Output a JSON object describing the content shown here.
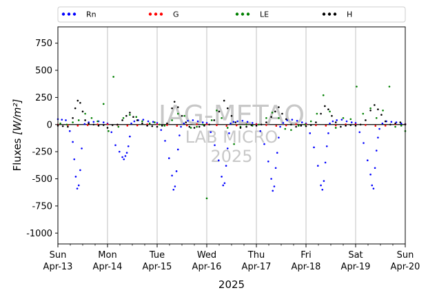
{
  "watermark": {
    "line1": "IAG-METAO",
    "line2": "LAB MICRO",
    "line3": "2025"
  },
  "chart_data": {
    "type": "scatter",
    "title": "",
    "xlabel": "2025",
    "ylabel": "Fluxes [W/m²]",
    "ylim": [
      -1100,
      900
    ],
    "yticks": [
      750,
      500,
      250,
      0,
      -250,
      -500,
      -750,
      -1000
    ],
    "xlim": [
      0,
      7
    ],
    "xticks": [
      {
        "x": 0,
        "day": "Sun",
        "date": "Apr-13"
      },
      {
        "x": 1,
        "day": "Mon",
        "date": "Apr-14"
      },
      {
        "x": 2,
        "day": "Tue",
        "date": "Apr-15"
      },
      {
        "x": 3,
        "day": "Wed",
        "date": "Apr-16"
      },
      {
        "x": 4,
        "day": "Thu",
        "date": "Apr-17"
      },
      {
        "x": 5,
        "day": "Fri",
        "date": "Apr-18"
      },
      {
        "x": 6,
        "day": "Sat",
        "date": "Apr-19"
      },
      {
        "x": 7,
        "day": "Sun",
        "date": "Apr-20"
      }
    ],
    "grid": "vertical",
    "legend_position": "top",
    "series": [
      {
        "name": "Rn",
        "color": "#0000ff",
        "x": [
          0.0,
          0.08,
          0.16,
          0.24,
          0.3,
          0.33,
          0.36,
          0.39,
          0.42,
          0.45,
          0.48,
          0.54,
          0.62,
          0.72,
          0.82,
          0.92,
          1.0,
          1.08,
          1.16,
          1.24,
          1.3,
          1.33,
          1.36,
          1.39,
          1.42,
          1.45,
          1.48,
          1.54,
          1.62,
          1.72,
          1.82,
          1.92,
          2.0,
          2.08,
          2.16,
          2.24,
          2.3,
          2.33,
          2.36,
          2.39,
          2.42,
          2.45,
          2.48,
          2.54,
          2.62,
          2.72,
          2.82,
          2.92,
          3.0,
          3.08,
          3.16,
          3.24,
          3.3,
          3.33,
          3.36,
          3.39,
          3.42,
          3.45,
          3.48,
          3.54,
          3.62,
          3.72,
          3.82,
          3.92,
          4.0,
          4.08,
          4.16,
          4.24,
          4.3,
          4.33,
          4.36,
          4.39,
          4.42,
          4.45,
          4.48,
          4.54,
          4.62,
          4.72,
          4.82,
          4.92,
          5.0,
          5.08,
          5.16,
          5.24,
          5.3,
          5.33,
          5.36,
          5.39,
          5.42,
          5.45,
          5.48,
          5.54,
          5.62,
          5.72,
          5.82,
          5.92,
          6.0,
          6.08,
          6.16,
          6.24,
          6.3,
          6.33,
          6.36,
          6.39,
          6.42,
          6.45,
          6.48,
          6.54,
          6.62,
          6.72,
          6.82,
          6.92,
          7.0
        ],
        "y": [
          50,
          45,
          40,
          -60,
          -160,
          -320,
          -480,
          -590,
          -560,
          -420,
          -220,
          5,
          20,
          25,
          30,
          20,
          10,
          -70,
          -190,
          -250,
          -300,
          -320,
          -290,
          -260,
          -200,
          -110,
          10,
          30,
          40,
          45,
          30,
          25,
          15,
          -50,
          -150,
          -310,
          -470,
          -600,
          -570,
          -430,
          -230,
          -100,
          -20,
          10,
          35,
          40,
          30,
          20,
          15,
          -70,
          -190,
          -330,
          -480,
          -560,
          -540,
          -380,
          -220,
          -80,
          10,
          25,
          30,
          35,
          25,
          15,
          5,
          -60,
          -180,
          -340,
          -500,
          -610,
          -570,
          -400,
          -260,
          -120,
          -20,
          15,
          40,
          45,
          35,
          20,
          10,
          -80,
          -210,
          -380,
          -560,
          -600,
          -520,
          -350,
          -200,
          -80,
          10,
          30,
          40,
          45,
          30,
          20,
          15,
          -70,
          -170,
          -330,
          -460,
          -560,
          -590,
          -400,
          -240,
          -120,
          -40,
          10,
          30,
          25,
          20,
          10,
          5
        ]
      },
      {
        "name": "G",
        "color": "#ff0000",
        "x": [
          0.0,
          0.2,
          0.4,
          0.6,
          0.8,
          1.0,
          1.2,
          1.4,
          1.6,
          1.8,
          2.0,
          2.2,
          2.4,
          2.6,
          2.8,
          3.0,
          3.2,
          3.4,
          3.6,
          3.8,
          4.0,
          4.2,
          4.4,
          4.6,
          4.8,
          5.0,
          5.2,
          5.4,
          5.6,
          5.8,
          6.0,
          6.2,
          6.4,
          6.6,
          6.8,
          7.0
        ],
        "y": [
          0,
          -5,
          -10,
          -5,
          2,
          3,
          -3,
          -10,
          -8,
          2,
          3,
          -5,
          -12,
          -8,
          2,
          3,
          -6,
          -12,
          -8,
          2,
          3,
          -5,
          -12,
          -8,
          2,
          3,
          -6,
          -10,
          -8,
          2,
          3,
          -5,
          -12,
          -10,
          2,
          3
        ]
      },
      {
        "name": "LE",
        "color": "#008000",
        "x": [
          0.05,
          0.18,
          0.3,
          0.42,
          0.55,
          0.68,
          0.8,
          0.92,
          1.02,
          1.12,
          1.22,
          1.32,
          1.45,
          1.58,
          1.7,
          1.85,
          1.95,
          2.05,
          2.15,
          2.3,
          2.42,
          2.55,
          2.68,
          2.8,
          2.92,
          3.0,
          3.1,
          3.2,
          3.3,
          3.42,
          3.55,
          3.68,
          3.8,
          3.92,
          4.05,
          4.2,
          4.32,
          4.45,
          4.58,
          4.7,
          4.85,
          4.98,
          5.1,
          5.22,
          5.35,
          5.48,
          5.6,
          5.75,
          5.9,
          6.02,
          6.15,
          6.3,
          6.42,
          6.55,
          6.68,
          6.8,
          6.92,
          7.0
        ],
        "y": [
          10,
          0,
          20,
          40,
          100,
          60,
          30,
          190,
          -60,
          440,
          -20,
          60,
          90,
          70,
          30,
          10,
          20,
          0,
          -10,
          40,
          100,
          80,
          -30,
          -20,
          0,
          -680,
          40,
          130,
          60,
          -30,
          -180,
          -20,
          0,
          -10,
          0,
          60,
          110,
          60,
          -40,
          -50,
          -10,
          0,
          30,
          100,
          270,
          120,
          -30,
          60,
          50,
          350,
          100,
          150,
          60,
          130,
          350,
          -20,
          -10,
          -60
        ]
      },
      {
        "name": "H",
        "color": "#000000",
        "x": [
          0.0,
          0.1,
          0.2,
          0.3,
          0.35,
          0.4,
          0.45,
          0.5,
          0.55,
          0.62,
          0.72,
          0.82,
          0.92,
          1.0,
          1.1,
          1.2,
          1.3,
          1.38,
          1.45,
          1.52,
          1.6,
          1.7,
          1.8,
          1.9,
          2.0,
          2.1,
          2.2,
          2.3,
          2.35,
          2.42,
          2.5,
          2.58,
          2.65,
          2.75,
          2.85,
          2.95,
          3.05,
          3.15,
          3.25,
          3.35,
          3.42,
          3.5,
          3.58,
          3.68,
          3.8,
          3.9,
          4.0,
          4.1,
          4.2,
          4.3,
          4.38,
          4.45,
          4.52,
          4.6,
          4.7,
          4.8,
          4.9,
          5.0,
          5.1,
          5.2,
          5.3,
          5.38,
          5.45,
          5.52,
          5.6,
          5.7,
          5.8,
          5.9,
          6.0,
          6.1,
          6.2,
          6.3,
          6.38,
          6.45,
          6.52,
          6.6,
          6.7,
          6.8,
          6.9,
          7.0
        ],
        "y": [
          -10,
          -15,
          -20,
          60,
          150,
          220,
          200,
          120,
          40,
          10,
          0,
          -10,
          -5,
          -30,
          -5,
          0,
          40,
          80,
          110,
          70,
          40,
          10,
          -10,
          -15,
          -20,
          -10,
          10,
          150,
          210,
          160,
          80,
          20,
          -20,
          -30,
          -20,
          -10,
          0,
          40,
          120,
          220,
          150,
          80,
          20,
          -30,
          -20,
          -5,
          -10,
          0,
          20,
          70,
          120,
          160,
          100,
          50,
          0,
          -20,
          -10,
          -15,
          -5,
          20,
          100,
          170,
          140,
          80,
          20,
          -20,
          -10,
          -5,
          -10,
          0,
          40,
          130,
          180,
          140,
          90,
          30,
          0,
          10,
          20,
          0
        ]
      }
    ]
  }
}
